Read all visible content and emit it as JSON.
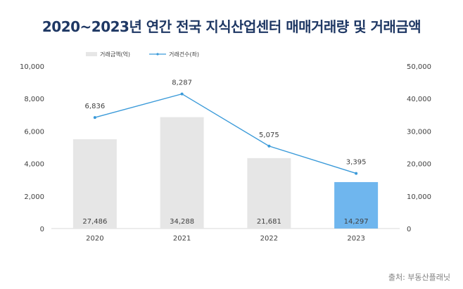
{
  "title": "2020~2023년 연간 전국 지식산업센터 매매거래량 및 거래금액",
  "source": "출처: 부동산플래닛",
  "colors": {
    "bar": "#e6e6e6",
    "bar_highlight": "#6fb6ee",
    "line": "#3a9ad9",
    "axis": "#d9d9d9",
    "text": "#404040"
  },
  "chart_data": {
    "type": "bar",
    "categories": [
      "2020",
      "2021",
      "2022",
      "2023"
    ],
    "series": [
      {
        "name": "거래금액(억)",
        "type": "bar",
        "axis": "right",
        "values": [
          27486,
          34288,
          21681,
          14297
        ],
        "highlight_index": 3
      },
      {
        "name": "거래건수(좌)",
        "type": "line",
        "axis": "left",
        "values": [
          6836,
          8287,
          5075,
          3395
        ]
      }
    ],
    "left_axis": {
      "ylim": [
        0,
        10000
      ],
      "ticks": [
        "0",
        "2,000",
        "4,000",
        "6,000",
        "8,000",
        "10,000"
      ]
    },
    "right_axis": {
      "ylim": [
        0,
        50000
      ],
      "ticks": [
        "0",
        "10,000",
        "20,000",
        "30,000",
        "40,000",
        "50,000"
      ]
    },
    "bar_labels": [
      "27,486",
      "34,288",
      "21,681",
      "14,297"
    ],
    "line_labels": [
      "6,836",
      "8,287",
      "5,075",
      "3,395"
    ],
    "legend_position": "top-left"
  }
}
